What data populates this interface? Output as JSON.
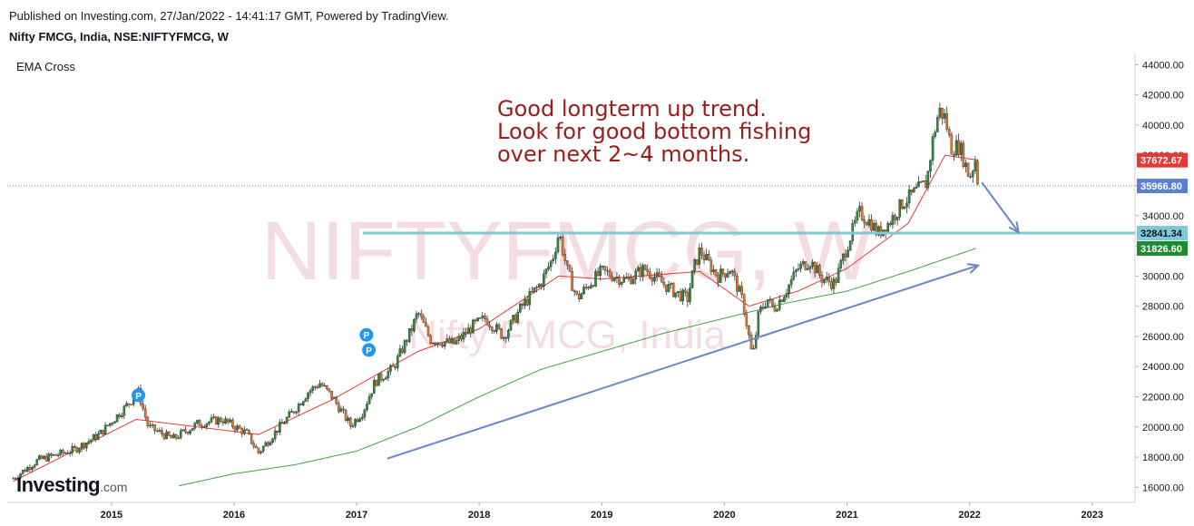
{
  "header": {
    "published": "Published on Investing.com, 27/Jan/2022 - 14:41:17 GMT, Powered by TradingView.",
    "symbol": "Nifty FMCG, India, NSE:NIFTYFMCG, W",
    "indicator": "EMA Cross"
  },
  "watermark": {
    "line1": "NIFTYFMCG, W",
    "line2": "Nifty FMCG, India"
  },
  "annotation": {
    "lines": [
      "Good longterm up trend.",
      "Look for good bottom fishing",
      "over next 2~4 months."
    ],
    "color": "#9c1c1c"
  },
  "logo": {
    "main": "Investing",
    "suffix": ".com"
  },
  "colors": {
    "up": "#2b8a3e",
    "down": "#e8742c",
    "ema_fast": "#e53935",
    "ema_slow": "#43a047",
    "trendline": "#6b86c6",
    "support": "#7ec8d8",
    "marker": "#2196f3"
  },
  "markers": [
    {
      "label": "P",
      "date": "2015-03"
    },
    {
      "label": "P",
      "date": "2017-02"
    },
    {
      "label": "P",
      "date": "2017-02"
    }
  ],
  "price_labels": [
    {
      "value": "37672.67",
      "color": "#e53935"
    },
    {
      "value": "35966.80",
      "color": "#5b7fd6"
    },
    {
      "value": "32841.34",
      "color": "#7ec8d8"
    },
    {
      "value": "31826.60",
      "color": "#1e8a2e"
    }
  ],
  "chart_data": {
    "type": "candlestick",
    "title": "Nifty FMCG, India, NSE:NIFTYFMCG, W",
    "x_tick_labels": [
      "2015",
      "2016",
      "2017",
      "2018",
      "2019",
      "2020",
      "2021",
      "2022",
      "2023"
    ],
    "y_tick_labels": [
      "16000.00",
      "18000.00",
      "20000.00",
      "22000.00",
      "24000.00",
      "26000.00",
      "28000.00",
      "30000.00",
      "32000.00",
      "34000.00",
      "36000.00",
      "38000.00",
      "40000.00",
      "42000.00",
      "44000.00"
    ],
    "ylim": [
      15000,
      44800
    ],
    "xlim": [
      2014.15,
      2023.35
    ],
    "close_path": [
      [
        2014.2,
        16600
      ],
      [
        2014.4,
        17800
      ],
      [
        2014.7,
        18500
      ],
      [
        2014.9,
        19500
      ],
      [
        2015.1,
        21200
      ],
      [
        2015.22,
        22300
      ],
      [
        2015.3,
        20000
      ],
      [
        2015.5,
        19200
      ],
      [
        2015.7,
        20200
      ],
      [
        2015.9,
        20500
      ],
      [
        2016.1,
        19600
      ],
      [
        2016.2,
        18300
      ],
      [
        2016.35,
        19800
      ],
      [
        2016.5,
        21200
      ],
      [
        2016.6,
        22300
      ],
      [
        2016.7,
        22900
      ],
      [
        2016.8,
        22000
      ],
      [
        2016.95,
        20100
      ],
      [
        2017.05,
        21000
      ],
      [
        2017.15,
        23000
      ],
      [
        2017.3,
        23900
      ],
      [
        2017.45,
        26500
      ],
      [
        2017.5,
        27600
      ],
      [
        2017.6,
        25800
      ],
      [
        2017.8,
        25500
      ],
      [
        2017.95,
        26700
      ],
      [
        2018.05,
        27200
      ],
      [
        2018.2,
        26000
      ],
      [
        2018.35,
        28000
      ],
      [
        2018.5,
        29500
      ],
      [
        2018.6,
        31200
      ],
      [
        2018.65,
        32900
      ],
      [
        2018.72,
        30300
      ],
      [
        2018.8,
        28500
      ],
      [
        2018.9,
        29500
      ],
      [
        2019.0,
        30300
      ],
      [
        2019.2,
        29700
      ],
      [
        2019.35,
        30500
      ],
      [
        2019.5,
        29500
      ],
      [
        2019.6,
        28900
      ],
      [
        2019.7,
        28500
      ],
      [
        2019.75,
        30500
      ],
      [
        2019.8,
        31700
      ],
      [
        2019.9,
        30500
      ],
      [
        2019.95,
        30000
      ],
      [
        2020.05,
        30500
      ],
      [
        2020.15,
        28300
      ],
      [
        2020.2,
        26000
      ],
      [
        2020.23,
        24500
      ],
      [
        2020.28,
        27500
      ],
      [
        2020.35,
        28500
      ],
      [
        2020.4,
        27800
      ],
      [
        2020.5,
        29000
      ],
      [
        2020.6,
        30500
      ],
      [
        2020.7,
        31000
      ],
      [
        2020.8,
        29800
      ],
      [
        2020.9,
        29500
      ],
      [
        2021.0,
        32000
      ],
      [
        2021.1,
        34200
      ],
      [
        2021.2,
        33500
      ],
      [
        2021.25,
        32800
      ],
      [
        2021.35,
        33600
      ],
      [
        2021.45,
        34800
      ],
      [
        2021.55,
        35500
      ],
      [
        2021.65,
        36200
      ],
      [
        2021.7,
        39000
      ],
      [
        2021.75,
        41000
      ],
      [
        2021.8,
        40500
      ],
      [
        2021.85,
        38500
      ],
      [
        2021.92,
        38600
      ],
      [
        2022.0,
        36500
      ],
      [
        2022.05,
        37800
      ],
      [
        2022.07,
        35966.8
      ]
    ],
    "series": [
      {
        "name": "EMA fast",
        "values": [
          [
            2014.2,
            16400
          ],
          [
            2015.2,
            20500
          ],
          [
            2016.2,
            19500
          ],
          [
            2016.8,
            21800
          ],
          [
            2017.5,
            25000
          ],
          [
            2018.0,
            26500
          ],
          [
            2018.65,
            30000
          ],
          [
            2019.0,
            29800
          ],
          [
            2019.8,
            30300
          ],
          [
            2020.2,
            28000
          ],
          [
            2020.6,
            29000
          ],
          [
            2021.0,
            30500
          ],
          [
            2021.5,
            33500
          ],
          [
            2021.8,
            38000
          ],
          [
            2022.07,
            37672.67
          ]
        ]
      },
      {
        "name": "EMA slow",
        "values": [
          [
            2015.55,
            16100
          ],
          [
            2016.0,
            16900
          ],
          [
            2016.5,
            17500
          ],
          [
            2017.0,
            18400
          ],
          [
            2017.5,
            20000
          ],
          [
            2018.0,
            22000
          ],
          [
            2018.5,
            23800
          ],
          [
            2019.0,
            25000
          ],
          [
            2019.5,
            26200
          ],
          [
            2020.0,
            27200
          ],
          [
            2020.5,
            28200
          ],
          [
            2021.0,
            29000
          ],
          [
            2021.5,
            30300
          ],
          [
            2022.05,
            31826.6
          ]
        ]
      }
    ],
    "lines": {
      "current_price": 35966.8,
      "support": 32841.34,
      "trendline_start": [
        2017.25,
        17900
      ],
      "trendline_end": [
        2022.07,
        30700
      ],
      "down_arrow_start": [
        2022.1,
        36200
      ],
      "down_arrow_end": [
        2022.4,
        32900
      ]
    }
  }
}
